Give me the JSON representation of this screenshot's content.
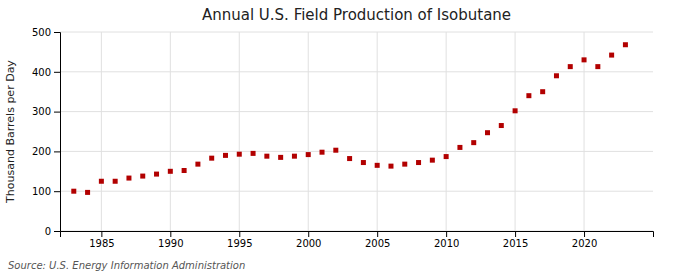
{
  "chart_data": {
    "type": "scatter",
    "title": "Annual U.S. Field Production of Isobutane",
    "ylabel": "Thousand Barrels per Day",
    "source": "Source: U.S. Energy Information Administration",
    "x": [
      1983,
      1984,
      1985,
      1986,
      1987,
      1988,
      1989,
      1990,
      1991,
      1992,
      1993,
      1994,
      1995,
      1996,
      1997,
      1998,
      1999,
      2000,
      2001,
      2002,
      2003,
      2004,
      2005,
      2006,
      2007,
      2008,
      2009,
      2010,
      2011,
      2012,
      2013,
      2014,
      2015,
      2016,
      2017,
      2018,
      2019,
      2020,
      2021,
      2022,
      2023
    ],
    "values": [
      100,
      97,
      125,
      125,
      133,
      138,
      143,
      150,
      152,
      168,
      183,
      190,
      193,
      195,
      188,
      185,
      188,
      192,
      198,
      203,
      182,
      172,
      165,
      163,
      168,
      172,
      178,
      187,
      210,
      222,
      247,
      265,
      302,
      340,
      350,
      390,
      413,
      430,
      413,
      442,
      468
    ],
    "color": "#b20000",
    "marker": "square",
    "xlim": [
      1982,
      2025
    ],
    "ylim": [
      0,
      500
    ],
    "xticks": [
      1985,
      1990,
      1995,
      2000,
      2005,
      2010,
      2015,
      2020
    ],
    "yticks": [
      0,
      100,
      200,
      300,
      400,
      500
    ],
    "grid": true
  }
}
